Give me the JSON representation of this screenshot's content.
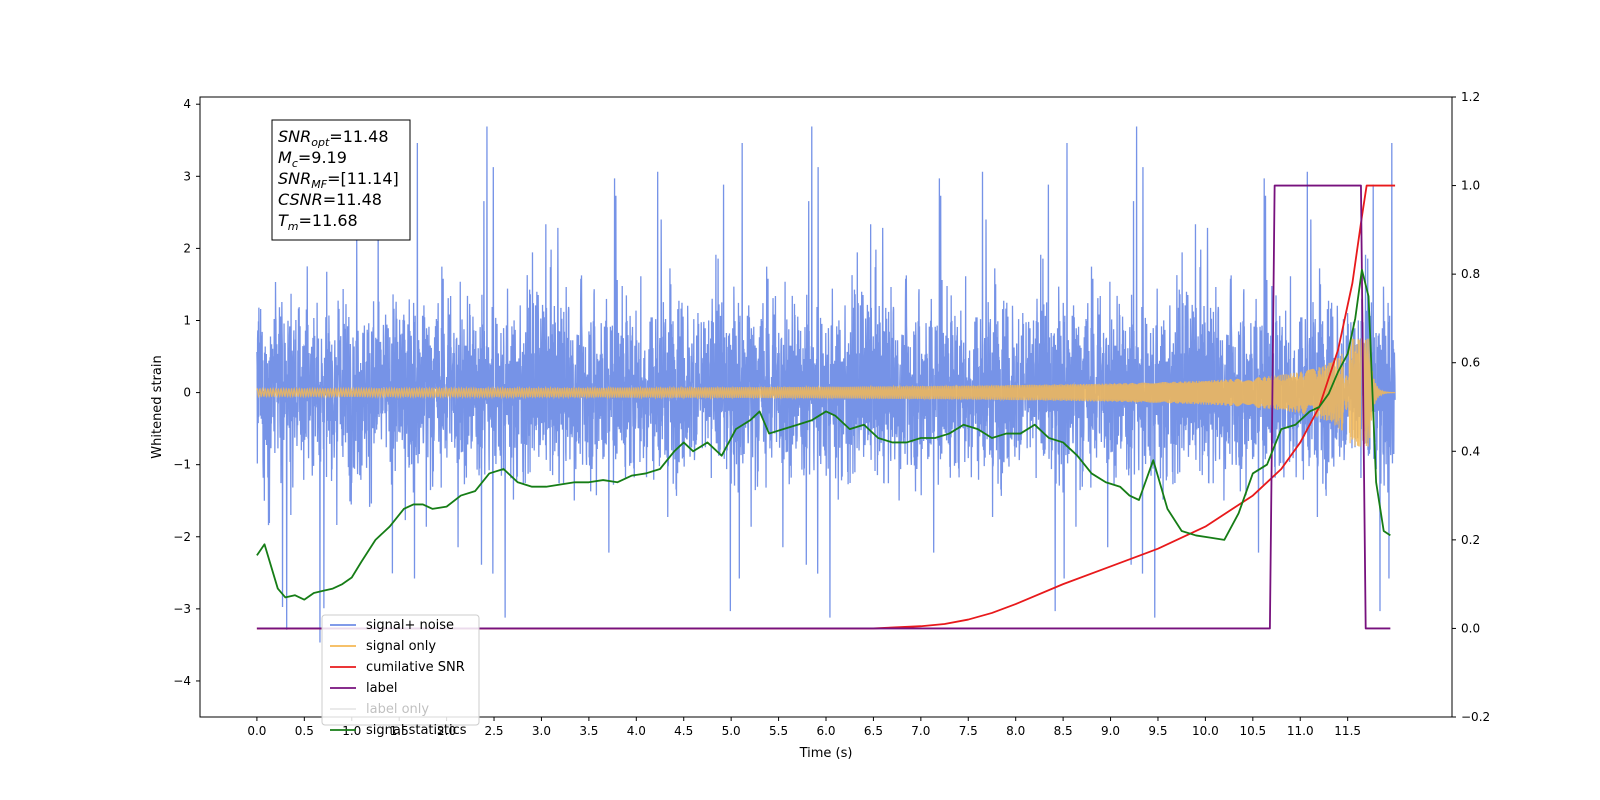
{
  "chart_data": {
    "type": "line",
    "xlabel": "Time (s)",
    "ylabel": "Whitened strain",
    "xlim": [
      -0.6,
      12.6
    ],
    "ylim": [
      -4.5,
      4.1
    ],
    "y2lim": [
      -0.2,
      1.2
    ],
    "x_ticks": [
      "0.0",
      "0.5",
      "1.0",
      "1.5",
      "2.0",
      "2.5",
      "3.0",
      "3.5",
      "4.0",
      "4.5",
      "5.0",
      "5.5",
      "6.0",
      "6.5",
      "7.0",
      "7.5",
      "8.0",
      "8.5",
      "9.0",
      "9.5",
      "10.0",
      "10.5",
      "11.0",
      "11.5"
    ],
    "y_ticks": [
      "−4",
      "−3",
      "−2",
      "−1",
      "0",
      "1",
      "2",
      "3",
      "4"
    ],
    "y2_ticks": [
      "−0.2",
      "0.0",
      "0.2",
      "0.4",
      "0.6",
      "0.8",
      "1.0",
      "1.2"
    ],
    "legend_position": "lower-left",
    "grid": false,
    "annotation": {
      "lines": [
        {
          "main": "SNR",
          "sub": "opt",
          "rest": "=11.48"
        },
        {
          "main": "M",
          "sub": "c",
          "rest": "=9.19"
        },
        {
          "main": "SNR",
          "sub": "MF",
          "rest": "=[11.14]"
        },
        {
          "main": "CSNR",
          "sub": "",
          "rest": "=11.48"
        },
        {
          "main": "T",
          "sub": "m",
          "rest": "=11.68"
        }
      ]
    },
    "series": [
      {
        "name": "signal+ noise",
        "color": "#6f8de6",
        "axis": "left",
        "kind": "noise",
        "x_range": [
          0.0,
          12.0
        ],
        "amplitude": 1.0
      },
      {
        "name": "signal only",
        "color": "#f5b855",
        "axis": "left",
        "kind": "chirp",
        "x_range": [
          0.0,
          12.0
        ],
        "peak_time": 11.68,
        "peak_amplitude": 0.75
      },
      {
        "name": "cumilative SNR",
        "color": "#e8191b",
        "axis": "right",
        "x": [
          0.0,
          6.0,
          6.5,
          7.0,
          7.25,
          7.5,
          7.75,
          8.0,
          8.5,
          9.0,
          9.5,
          10.0,
          10.5,
          10.8,
          11.0,
          11.2,
          11.4,
          11.55,
          11.65,
          11.7,
          12.0
        ],
        "values": [
          0.0,
          0.0,
          0.0,
          0.005,
          0.01,
          0.02,
          0.035,
          0.055,
          0.1,
          0.14,
          0.18,
          0.23,
          0.3,
          0.36,
          0.42,
          0.5,
          0.63,
          0.78,
          0.93,
          1.0,
          1.0
        ]
      },
      {
        "name": "label",
        "color": "#77117d",
        "axis": "right",
        "x": [
          0.0,
          10.68,
          10.73,
          11.64,
          11.69,
          11.95
        ],
        "values": [
          0.0,
          0.0,
          1.0,
          1.0,
          0.0,
          0.0
        ]
      },
      {
        "name": "label only",
        "color": "#bbbbbb",
        "axis": "right",
        "x": [],
        "values": []
      },
      {
        "name": "signal statistics",
        "color": "#167d16",
        "axis": "right",
        "x": [
          0.0,
          0.08,
          0.15,
          0.22,
          0.3,
          0.4,
          0.5,
          0.6,
          0.7,
          0.8,
          0.9,
          1.0,
          1.1,
          1.25,
          1.4,
          1.55,
          1.65,
          1.75,
          1.85,
          2.0,
          2.15,
          2.3,
          2.45,
          2.6,
          2.75,
          2.9,
          3.05,
          3.2,
          3.35,
          3.5,
          3.65,
          3.8,
          3.95,
          4.1,
          4.25,
          4.4,
          4.5,
          4.6,
          4.75,
          4.9,
          5.05,
          5.2,
          5.3,
          5.4,
          5.55,
          5.7,
          5.85,
          6.0,
          6.1,
          6.25,
          6.4,
          6.55,
          6.7,
          6.85,
          7.0,
          7.15,
          7.3,
          7.45,
          7.6,
          7.75,
          7.9,
          8.05,
          8.2,
          8.35,
          8.5,
          8.65,
          8.8,
          8.95,
          9.1,
          9.2,
          9.3,
          9.45,
          9.6,
          9.75,
          9.9,
          10.05,
          10.2,
          10.35,
          10.5,
          10.65,
          10.8,
          10.95,
          11.1,
          11.2,
          11.3,
          11.4,
          11.5,
          11.58,
          11.65,
          11.72,
          11.8,
          11.88,
          11.95
        ],
        "values": [
          0.165,
          0.19,
          0.14,
          0.09,
          0.07,
          0.075,
          0.065,
          0.08,
          0.085,
          0.09,
          0.1,
          0.115,
          0.15,
          0.2,
          0.23,
          0.27,
          0.28,
          0.28,
          0.27,
          0.275,
          0.3,
          0.31,
          0.35,
          0.36,
          0.33,
          0.32,
          0.32,
          0.325,
          0.33,
          0.33,
          0.335,
          0.33,
          0.345,
          0.35,
          0.36,
          0.4,
          0.42,
          0.4,
          0.42,
          0.39,
          0.45,
          0.47,
          0.49,
          0.44,
          0.45,
          0.46,
          0.47,
          0.49,
          0.48,
          0.45,
          0.46,
          0.43,
          0.42,
          0.42,
          0.43,
          0.43,
          0.44,
          0.46,
          0.45,
          0.43,
          0.44,
          0.44,
          0.46,
          0.43,
          0.42,
          0.39,
          0.35,
          0.33,
          0.32,
          0.3,
          0.29,
          0.38,
          0.27,
          0.22,
          0.21,
          0.205,
          0.2,
          0.26,
          0.35,
          0.37,
          0.45,
          0.46,
          0.49,
          0.5,
          0.53,
          0.58,
          0.62,
          0.7,
          0.81,
          0.75,
          0.33,
          0.22,
          0.21
        ]
      }
    ]
  }
}
